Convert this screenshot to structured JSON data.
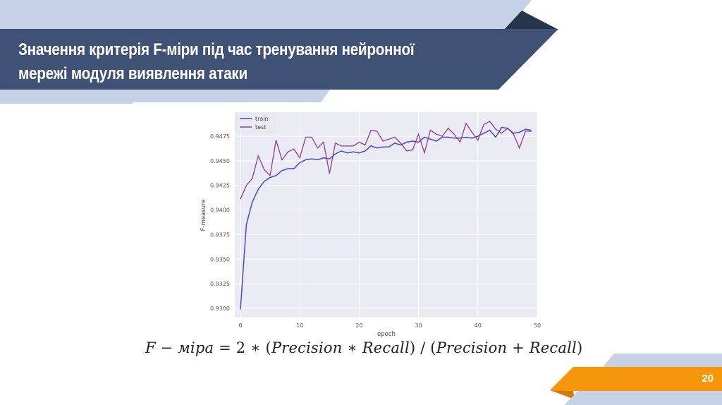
{
  "slide": {
    "title_line1": "Значення критерія F-міри під час тренування нейронної",
    "title_line2": "мережі модуля виявлення атаки",
    "page_number": "20",
    "formula": {
      "lhs": "F − міра",
      "eq": " = 2 ∗ (",
      "p1": "Precision",
      "mul": " ∗ ",
      "r1": "Recall",
      "mid": ") / (",
      "p2": "Precision",
      "plus": " + ",
      "r2": "Recall",
      "end": ")"
    },
    "colors": {
      "header_dark": "#3f5275",
      "header_light": "#c5d2e6",
      "header_shadow": "#26344c",
      "footer_orange": "#f6960a",
      "footer_orange_dark": "#d57a06",
      "footer_light": "#c5d2e6",
      "train_line": "#4b45d6",
      "test_line": "#8a3f8f",
      "plot_bg": "#eaeaf2"
    }
  },
  "chart_data": {
    "type": "line",
    "title": "",
    "xlabel": "epoch",
    "ylabel": "F-measure",
    "xlim": [
      -1,
      50.5
    ],
    "ylim": [
      0.92907,
      0.94994
    ],
    "xticks": [
      0,
      10,
      20,
      30,
      40,
      50
    ],
    "yticks": [
      "0.9300",
      "0.9325",
      "0.9350",
      "0.9375",
      "0.9400",
      "0.9425",
      "0.9450",
      "0.9475"
    ],
    "grid": true,
    "legend_position": "upper left",
    "x": [
      0,
      1,
      2,
      3,
      4,
      5,
      6,
      7,
      8,
      9,
      10,
      11,
      12,
      13,
      14,
      15,
      16,
      17,
      18,
      19,
      20,
      21,
      22,
      23,
      24,
      25,
      26,
      27,
      28,
      29,
      30,
      31,
      32,
      33,
      34,
      35,
      36,
      37,
      38,
      39,
      40,
      41,
      42,
      43,
      44,
      45,
      46,
      47,
      48,
      49
    ],
    "series": [
      {
        "name": "train",
        "color": "#4b45d6",
        "values": [
          0.9299,
          0.9385,
          0.9408,
          0.9421,
          0.9429,
          0.9433,
          0.9435,
          0.944,
          0.9442,
          0.9442,
          0.9448,
          0.9451,
          0.9452,
          0.9451,
          0.9453,
          0.9452,
          0.9457,
          0.946,
          0.9458,
          0.9459,
          0.9458,
          0.946,
          0.9465,
          0.9463,
          0.9464,
          0.9464,
          0.9468,
          0.9466,
          0.9469,
          0.947,
          0.9469,
          0.9474,
          0.9472,
          0.947,
          0.9474,
          0.9474,
          0.9473,
          0.9473,
          0.9474,
          0.9473,
          0.9475,
          0.9478,
          0.9481,
          0.9474,
          0.9484,
          0.9483,
          0.9478,
          0.9479,
          0.9482,
          0.9481
        ]
      },
      {
        "name": "test",
        "color": "#8a3f8f",
        "values": [
          0.9411,
          0.9425,
          0.9432,
          0.9455,
          0.9441,
          0.9435,
          0.9471,
          0.9451,
          0.9459,
          0.9462,
          0.9453,
          0.9474,
          0.9474,
          0.9463,
          0.9469,
          0.9437,
          0.9468,
          0.9465,
          0.9465,
          0.9465,
          0.9469,
          0.9466,
          0.9481,
          0.948,
          0.947,
          0.9472,
          0.9474,
          0.9468,
          0.946,
          0.9461,
          0.9477,
          0.9458,
          0.9481,
          0.9477,
          0.9475,
          0.9483,
          0.9477,
          0.9469,
          0.9488,
          0.9479,
          0.9471,
          0.9487,
          0.949,
          0.9482,
          0.9478,
          0.9483,
          0.9477,
          0.9463,
          0.948,
          0.948
        ]
      }
    ]
  }
}
